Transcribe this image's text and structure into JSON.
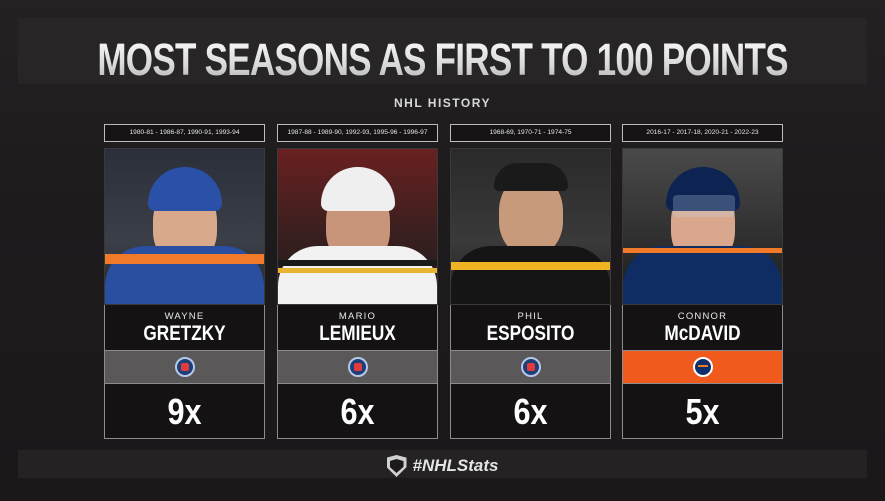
{
  "header": {
    "title": "MOST SEASONS AS FIRST TO 100 POINTS",
    "subtitle": "NHL HISTORY"
  },
  "players": [
    {
      "years": "1980-81 - 1986-87, 1990-91, 1993-94",
      "first_name": "WAYNE",
      "last_name": "GRETZKY",
      "logo": "hall-of-fame-logo",
      "count": "9x"
    },
    {
      "years": "1987-88 - 1989-90, 1992-93, 1995-96 - 1996-97",
      "first_name": "MARIO",
      "last_name": "LEMIEUX",
      "logo": "hall-of-fame-logo",
      "count": "6x"
    },
    {
      "years": "1968-69, 1970-71 - 1974-75",
      "first_name": "PHIL",
      "last_name": "ESPOSITO",
      "logo": "hall-of-fame-logo",
      "count": "6x"
    },
    {
      "years": "2016-17 - 2017-18, 2020-21 - 2022-23",
      "first_name": "CONNOR",
      "last_name": "McDAVID",
      "logo": "oilers-logo",
      "count": "5x"
    }
  ],
  "footer": {
    "hashtag": "#NHLStats",
    "logo": "nhl-shield-logo"
  },
  "colors": {
    "background": "#1c1a1b",
    "hof_bar": "#5a5859",
    "oilers_bar": "#f05a1c"
  }
}
